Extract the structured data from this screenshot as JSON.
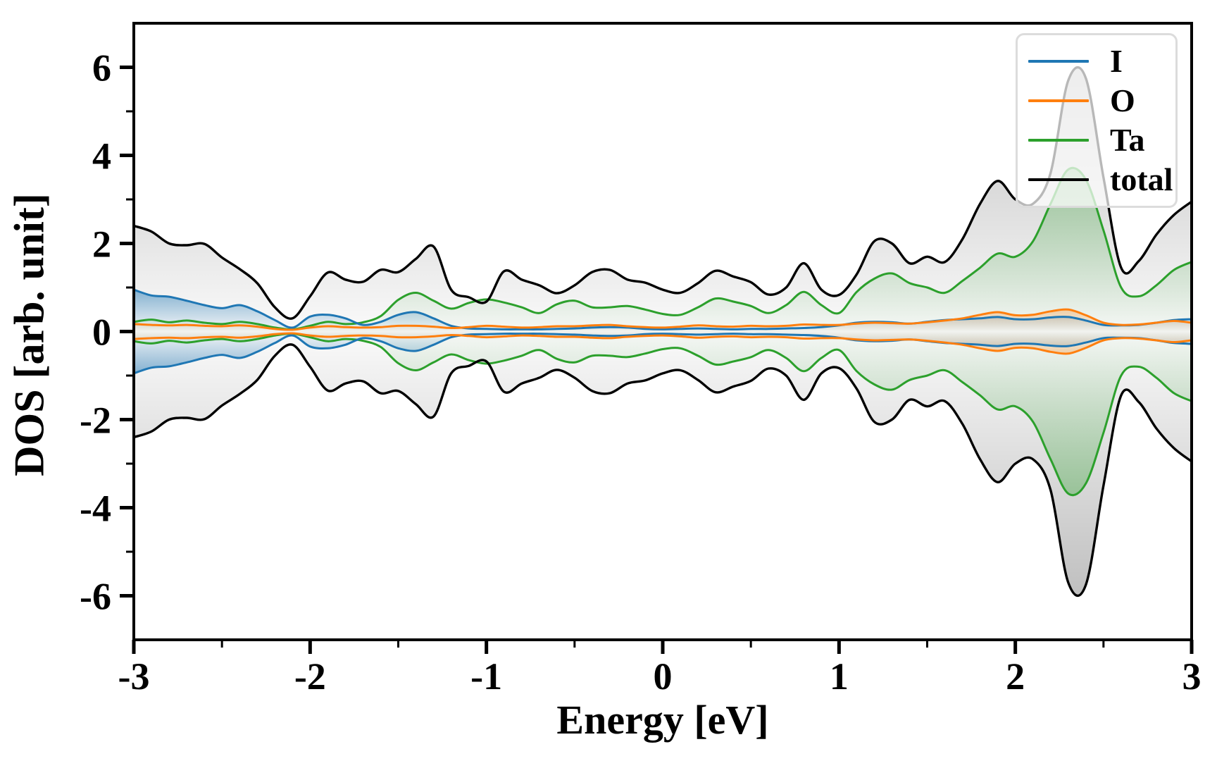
{
  "chart_data": {
    "type": "area",
    "title": "",
    "xlabel": "Energy [eV]",
    "ylabel": "DOS [arb. unit]",
    "xlim": [
      -3,
      3
    ],
    "ylim": [
      -7,
      7
    ],
    "grid": false,
    "x_major_ticks": [
      -3,
      -2,
      -1,
      0,
      1,
      2,
      3
    ],
    "x_major_labels": [
      "-3",
      "-2",
      "-1",
      "0",
      "1",
      "2",
      "3"
    ],
    "x_minor_ticks": [
      -2.5,
      -1.5,
      -0.5,
      0.5,
      1.5,
      2.5
    ],
    "y_major_ticks": [
      -6,
      -4,
      -2,
      0,
      2,
      4,
      6
    ],
    "y_major_labels": [
      "-6",
      "-4",
      "-2",
      "0",
      "2",
      "4",
      "6"
    ],
    "y_minor_ticks": [
      -5,
      -3,
      -1,
      1,
      3,
      5
    ],
    "legend": {
      "position": "upper right",
      "entries": [
        "I",
        "O",
        "Ta",
        "total"
      ]
    },
    "spin_polarized": true,
    "spin_down_note": "spin-down branch shown below zero is the negated mirror of spin_up",
    "x": [
      -3.0,
      -2.9,
      -2.8,
      -2.7,
      -2.6,
      -2.5,
      -2.4,
      -2.3,
      -2.2,
      -2.1,
      -2.0,
      -1.9,
      -1.8,
      -1.7,
      -1.6,
      -1.5,
      -1.4,
      -1.3,
      -1.2,
      -1.1,
      -1.0,
      -0.9,
      -0.8,
      -0.7,
      -0.6,
      -0.5,
      -0.4,
      -0.3,
      -0.2,
      -0.1,
      0.0,
      0.1,
      0.2,
      0.3,
      0.4,
      0.5,
      0.6,
      0.7,
      0.8,
      0.9,
      1.0,
      1.1,
      1.2,
      1.3,
      1.4,
      1.5,
      1.6,
      1.7,
      1.8,
      1.9,
      2.0,
      2.1,
      2.2,
      2.3,
      2.4,
      2.5,
      2.6,
      2.7,
      2.8,
      2.9,
      3.0
    ],
    "series": [
      {
        "name": "I",
        "color": "#1f77b4",
        "spin_up": [
          0.95,
          0.82,
          0.79,
          0.7,
          0.6,
          0.53,
          0.6,
          0.46,
          0.26,
          0.09,
          0.34,
          0.38,
          0.3,
          0.15,
          0.22,
          0.38,
          0.44,
          0.3,
          0.13,
          0.07,
          0.06,
          0.05,
          0.05,
          0.05,
          0.06,
          0.07,
          0.09,
          0.1,
          0.09,
          0.06,
          0.05,
          0.06,
          0.07,
          0.06,
          0.05,
          0.06,
          0.06,
          0.07,
          0.08,
          0.1,
          0.14,
          0.2,
          0.22,
          0.21,
          0.18,
          0.22,
          0.26,
          0.28,
          0.3,
          0.33,
          0.28,
          0.28,
          0.32,
          0.33,
          0.25,
          0.15,
          0.14,
          0.15,
          0.2,
          0.26,
          0.28
        ]
      },
      {
        "name": "O",
        "color": "#ff7f0e",
        "spin_up": [
          0.17,
          0.15,
          0.14,
          0.15,
          0.13,
          0.12,
          0.14,
          0.11,
          0.06,
          0.04,
          0.09,
          0.12,
          0.1,
          0.09,
          0.1,
          0.13,
          0.13,
          0.11,
          0.08,
          0.1,
          0.13,
          0.11,
          0.09,
          0.1,
          0.12,
          0.12,
          0.14,
          0.15,
          0.12,
          0.1,
          0.09,
          0.11,
          0.14,
          0.12,
          0.11,
          0.13,
          0.12,
          0.13,
          0.16,
          0.15,
          0.15,
          0.18,
          0.2,
          0.19,
          0.18,
          0.21,
          0.25,
          0.3,
          0.38,
          0.44,
          0.37,
          0.38,
          0.46,
          0.5,
          0.37,
          0.2,
          0.15,
          0.16,
          0.2,
          0.24,
          0.2
        ]
      },
      {
        "name": "Ta",
        "color": "#2ca02c",
        "spin_up": [
          0.22,
          0.27,
          0.21,
          0.25,
          0.2,
          0.17,
          0.22,
          0.17,
          0.09,
          0.05,
          0.13,
          0.22,
          0.17,
          0.21,
          0.35,
          0.72,
          0.88,
          0.7,
          0.52,
          0.65,
          0.73,
          0.66,
          0.55,
          0.42,
          0.62,
          0.7,
          0.55,
          0.55,
          0.58,
          0.5,
          0.4,
          0.38,
          0.55,
          0.75,
          0.68,
          0.58,
          0.42,
          0.6,
          0.9,
          0.6,
          0.42,
          0.9,
          1.2,
          1.32,
          1.1,
          1.0,
          0.88,
          1.15,
          1.45,
          1.77,
          1.7,
          2.05,
          2.9,
          3.68,
          3.45,
          2.3,
          1.0,
          0.8,
          1.05,
          1.4,
          1.58
        ]
      },
      {
        "name": "total",
        "color": "#000000",
        "spin_up": [
          2.4,
          2.27,
          2.0,
          1.96,
          1.99,
          1.68,
          1.42,
          1.1,
          0.55,
          0.3,
          0.8,
          1.34,
          1.18,
          1.13,
          1.4,
          1.35,
          1.65,
          1.93,
          0.95,
          0.78,
          0.68,
          1.37,
          1.18,
          1.05,
          0.87,
          1.05,
          1.35,
          1.4,
          1.18,
          1.11,
          0.95,
          0.88,
          1.1,
          1.38,
          1.25,
          1.12,
          0.84,
          1.0,
          1.55,
          0.95,
          0.83,
          1.3,
          2.05,
          2.0,
          1.55,
          1.7,
          1.58,
          2.1,
          2.9,
          3.42,
          3.0,
          2.9,
          3.6,
          5.7,
          5.75,
          3.5,
          1.45,
          1.6,
          2.2,
          2.65,
          2.95
        ]
      }
    ]
  }
}
